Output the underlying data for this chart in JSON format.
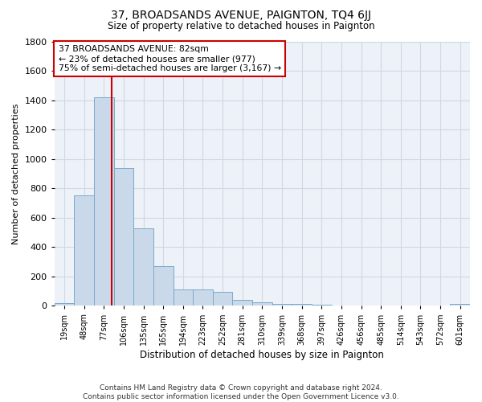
{
  "title": "37, BROADSANDS AVENUE, PAIGNTON, TQ4 6JJ",
  "subtitle": "Size of property relative to detached houses in Paignton",
  "xlabel": "Distribution of detached houses by size in Paignton",
  "ylabel": "Number of detached properties",
  "footer_line1": "Contains HM Land Registry data © Crown copyright and database right 2024.",
  "footer_line2": "Contains public sector information licensed under the Open Government Licence v3.0.",
  "bins": [
    "19sqm",
    "48sqm",
    "77sqm",
    "106sqm",
    "135sqm",
    "165sqm",
    "194sqm",
    "223sqm",
    "252sqm",
    "281sqm",
    "310sqm",
    "339sqm",
    "368sqm",
    "397sqm",
    "426sqm",
    "456sqm",
    "485sqm",
    "514sqm",
    "543sqm",
    "572sqm",
    "601sqm"
  ],
  "values": [
    20,
    750,
    1420,
    940,
    530,
    270,
    110,
    110,
    95,
    40,
    25,
    15,
    15,
    10,
    5,
    5,
    5,
    5,
    5,
    5,
    15
  ],
  "bar_color": "#c9d9ea",
  "bar_edge_color": "#7aaac8",
  "grid_color": "#d0d8e4",
  "background_color": "#edf1f8",
  "vline_x_index": 2.38,
  "vline_color": "#cc0000",
  "annotation_text": "37 BROADSANDS AVENUE: 82sqm\n← 23% of detached houses are smaller (977)\n75% of semi-detached houses are larger (3,167) →",
  "annotation_box_color": "#ffffff",
  "annotation_box_edge_color": "#cc0000",
  "ylim": [
    0,
    1800
  ],
  "yticks": [
    0,
    200,
    400,
    600,
    800,
    1000,
    1200,
    1400,
    1600,
    1800
  ]
}
